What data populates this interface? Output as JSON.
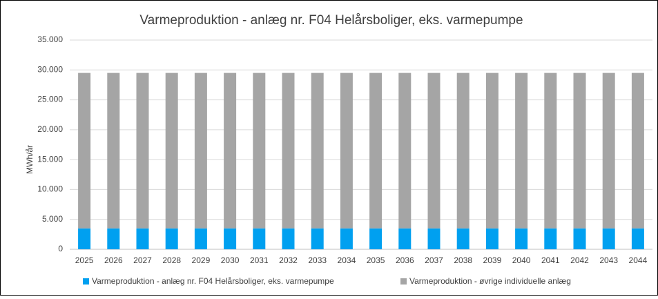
{
  "chart_data": {
    "type": "stacked_bar",
    "title": "Varmeproduktion - anlæg nr. F04 Helårsboliger, eks. varmepumpe",
    "y_label": "MWh/år",
    "categories": [
      "2025",
      "2026",
      "2027",
      "2028",
      "2029",
      "2030",
      "2031",
      "2032",
      "2033",
      "2034",
      "2035",
      "2036",
      "2037",
      "2038",
      "2039",
      "2040",
      "2041",
      "2042",
      "2043",
      "2044"
    ],
    "series": [
      {
        "name": "Varmeproduktion - anlæg nr. F04 Helårsboliger, eks. varmepumpe",
        "color": "#00a0f0",
        "values": [
          3500,
          3500,
          3500,
          3500,
          3500,
          3500,
          3500,
          3500,
          3500,
          3500,
          3500,
          3500,
          3500,
          3500,
          3500,
          3500,
          3500,
          3500,
          3500,
          3500
        ]
      },
      {
        "name": "Varmeproduktion - øvrige individuelle anlæg",
        "color": "#a5a5a5",
        "values": [
          26000,
          26000,
          26000,
          26000,
          26000,
          26000,
          26000,
          26000,
          26000,
          26000,
          26000,
          26000,
          26000,
          26000,
          26000,
          26000,
          26000,
          26000,
          26000,
          26000
        ]
      }
    ],
    "ylim": [
      0,
      35000
    ],
    "yticks": [
      0,
      {
        "value": 5000,
        "label": "5.000"
      },
      {
        "value": 10000,
        "label": "10.000"
      },
      {
        "value": 15000,
        "label": "15.000"
      },
      {
        "value": 20000,
        "label": "20.000"
      },
      {
        "value": 25000,
        "label": "25.000"
      },
      {
        "value": 30000,
        "label": "30.000"
      },
      {
        "value": 35000,
        "label": "35.000"
      }
    ],
    "grid": true,
    "legend": "bottom"
  }
}
